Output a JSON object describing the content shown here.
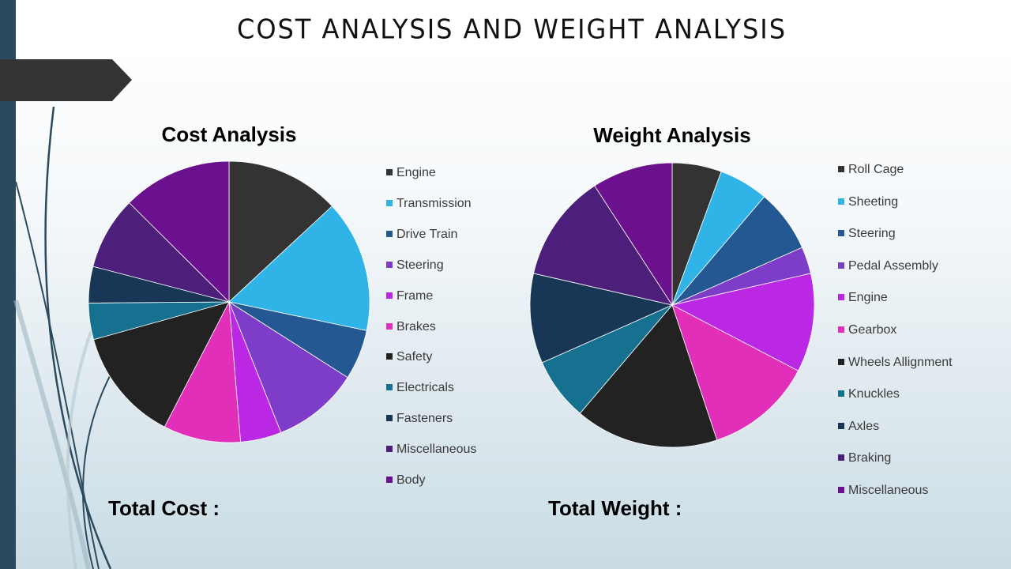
{
  "slide": {
    "title": "COST ANALYSIS AND WEIGHT ANALYSIS",
    "total_cost_label": "Total Cost :",
    "total_weight_label": "Total Weight :"
  },
  "colors": {
    "accent_bar": "#2c4a5e",
    "ribbon": "#333333"
  },
  "chart_data": [
    {
      "type": "pie",
      "title": "Cost Analysis",
      "legend_position": "right",
      "slices": [
        {
          "label": "Engine",
          "value": 12.5,
          "color": "#333333"
        },
        {
          "label": "Transmission",
          "value": 14.5,
          "color": "#30b3e6"
        },
        {
          "label": "Drive Train",
          "value": 5.5,
          "color": "#245892"
        },
        {
          "label": "Steering",
          "value": 9.5,
          "color": "#7d3dc9"
        },
        {
          "label": "Frame",
          "value": 4.5,
          "color": "#ba28e4"
        },
        {
          "label": "Brakes",
          "value": 8.5,
          "color": "#e22fba"
        },
        {
          "label": "Safety",
          "value": 12.5,
          "color": "#222222"
        },
        {
          "label": "Electricals",
          "value": 4.0,
          "color": "#16708f"
        },
        {
          "label": "Fasteners",
          "value": 4.0,
          "color": "#183655"
        },
        {
          "label": "Miscellaneous",
          "value": 8.0,
          "color": "#4b1f7a"
        },
        {
          "label": "Body",
          "value": 12.0,
          "color": "#6c118e"
        }
      ]
    },
    {
      "type": "pie",
      "title": "Weight Analysis",
      "legend_position": "right",
      "slices": [
        {
          "label": "Roll Cage",
          "value": 5.5,
          "color": "#333333"
        },
        {
          "label": "Sheeting",
          "value": 5.5,
          "color": "#30b3e6"
        },
        {
          "label": "Steering",
          "value": 7.0,
          "color": "#245892"
        },
        {
          "label": "Pedal Assembly",
          "value": 3.0,
          "color": "#7d3dc9"
        },
        {
          "label": "Engine",
          "value": 11.0,
          "color": "#ba28e4"
        },
        {
          "label": "Gearbox",
          "value": 12.0,
          "color": "#e22fba"
        },
        {
          "label": "Wheels Allignment",
          "value": 16.0,
          "color": "#222222"
        },
        {
          "label": "Knuckles",
          "value": 7.0,
          "color": "#16708f"
        },
        {
          "label": "Axles",
          "value": 10.0,
          "color": "#183655"
        },
        {
          "label": "Braking",
          "value": 12.0,
          "color": "#4b1f7a"
        },
        {
          "label": "Miscellaneous",
          "value": 9.0,
          "color": "#6c118e"
        }
      ]
    }
  ]
}
